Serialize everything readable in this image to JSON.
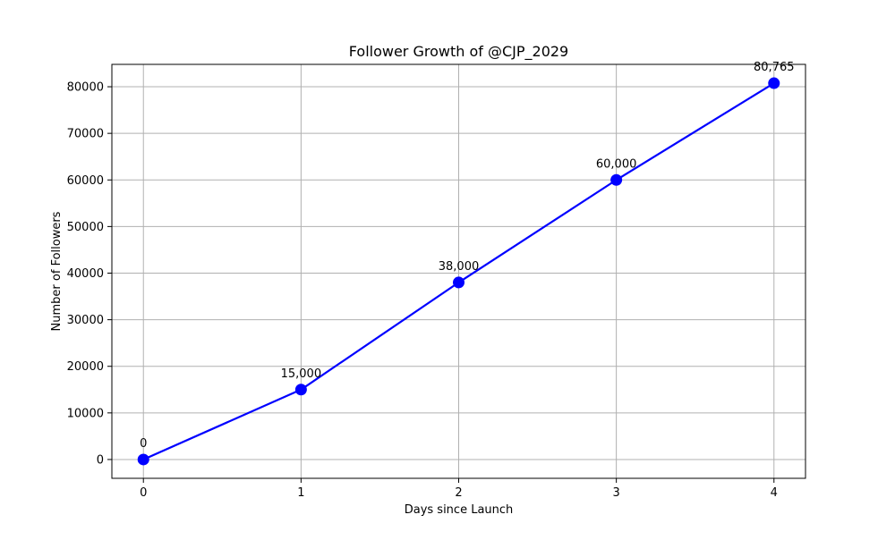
{
  "chart_data": {
    "type": "line",
    "title": "Follower Growth of @CJP_2029",
    "xlabel": "Days since Launch",
    "ylabel": "Number of Followers",
    "x": [
      0,
      1,
      2,
      3,
      4
    ],
    "values": [
      0,
      15000,
      38000,
      60000,
      80765
    ],
    "data_labels": [
      "0",
      "15,000",
      "38,000",
      "60,000",
      "80,765"
    ],
    "xlim": [
      -0.2,
      4.2
    ],
    "ylim": [
      -4038.25,
      84803.25
    ],
    "x_ticks": [
      0,
      1,
      2,
      3,
      4
    ],
    "x_tick_labels": [
      "0",
      "1",
      "2",
      "3",
      "4"
    ],
    "y_ticks": [
      0,
      10000,
      20000,
      30000,
      40000,
      50000,
      60000,
      70000,
      80000
    ],
    "y_tick_labels": [
      "0",
      "10000",
      "20000",
      "30000",
      "40000",
      "50000",
      "60000",
      "70000",
      "80000"
    ],
    "grid": true,
    "line_color": "#0000ff",
    "marker": "circle",
    "grid_color": "#b0b0b0"
  }
}
